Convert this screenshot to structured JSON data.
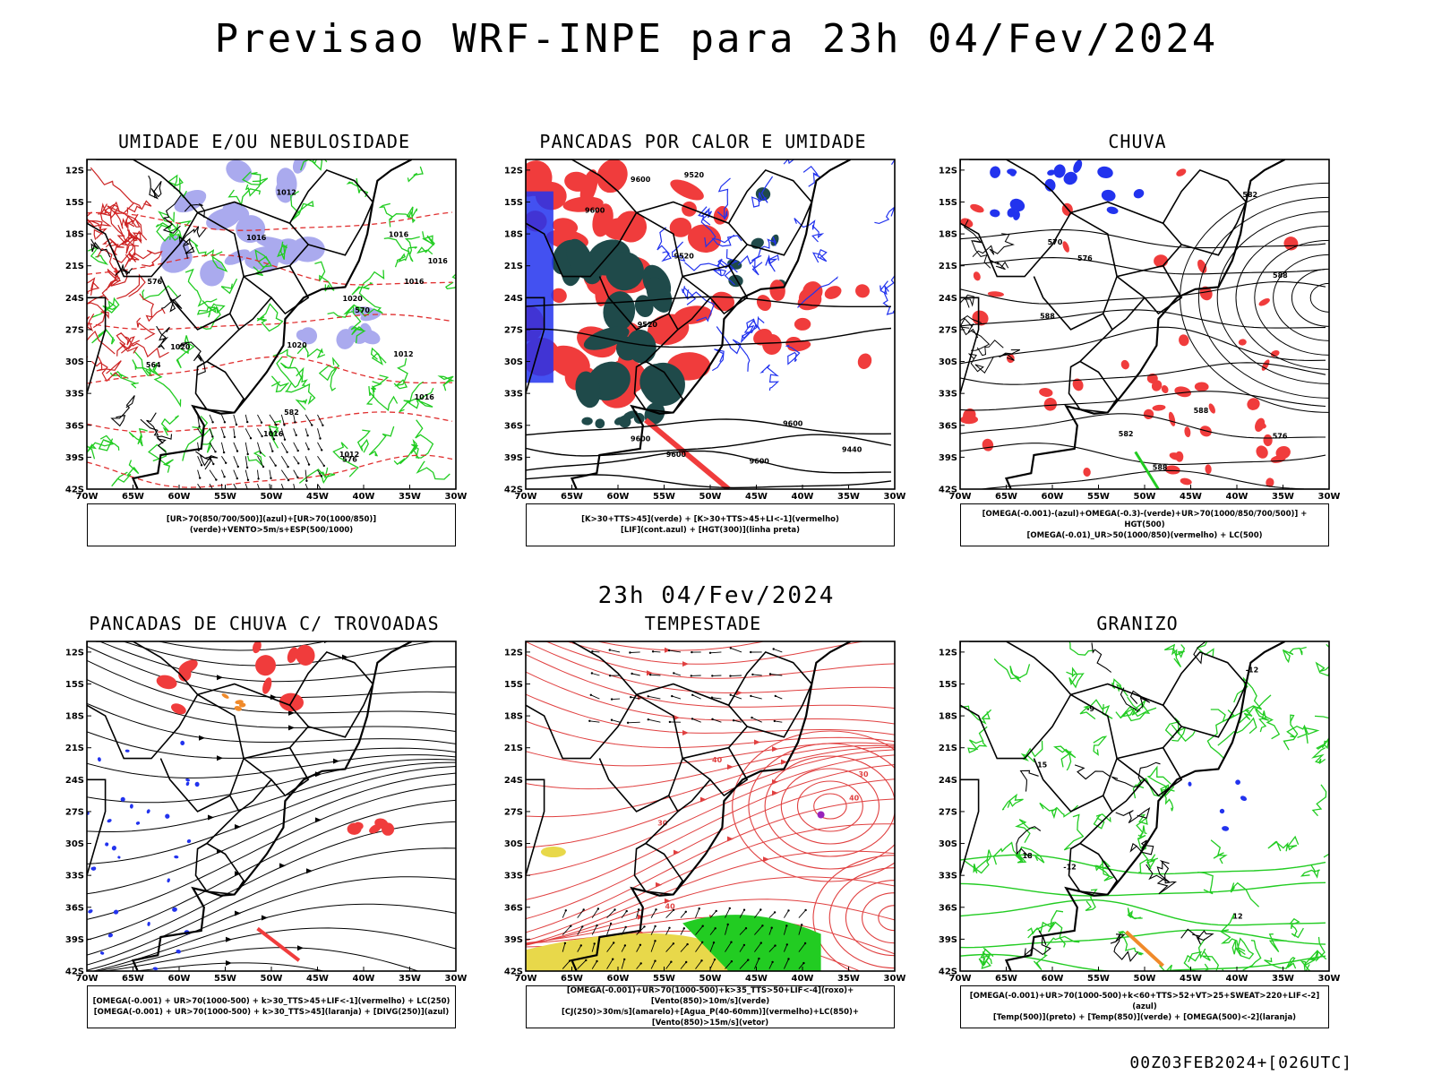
{
  "page": {
    "title": "Previsao WRF-INPE  para 23h 04/Fev/2024",
    "mid_title": "23h 04/Fev/2024",
    "footer": "00Z03FEB2024+[026UTC]"
  },
  "axes": {
    "lat_ticks": [
      "12S",
      "15S",
      "18S",
      "21S",
      "24S",
      "27S",
      "30S",
      "33S",
      "36S",
      "39S",
      "42S"
    ],
    "lon_ticks": [
      "70W",
      "65W",
      "60W",
      "55W",
      "50W",
      "45W",
      "40W",
      "35W",
      "30W"
    ]
  },
  "colors": {
    "red": "#f03c3c",
    "green": "#22cc22",
    "blue": "#2233ee",
    "lavender": "#aaaaee",
    "darkteal": "#1f4a4a",
    "yellow": "#e8d84a",
    "orange": "#f08a2a",
    "purple": "#9922bb"
  },
  "panels": [
    {
      "id": "umidade",
      "title": "UMIDADE E/OU NEBULOSIDADE",
      "legend": [
        "[UR>70(850/700/500)](azul)+[UR>70(1000/850)](verde)+VENTO>5m/s+ESP(500/1000)"
      ],
      "labels": [
        "1016",
        "1012",
        "1016",
        "1016",
        "1016",
        "1012",
        "1016",
        "1020",
        "1020",
        "1016",
        "1012",
        "1020",
        "570",
        "576",
        "582",
        "576",
        "564"
      ]
    },
    {
      "id": "pancadas_calor",
      "title": "PANCADAS POR CALOR E UMIDADE",
      "legend": [
        "[K>30+TTS>45](verde) + [K>30+TTS>45+LI<-1](vermelho)",
        "[LIF](cont.azul) + [HGT(300)](linha preta)"
      ],
      "labels": [
        "9600",
        "9600",
        "9600",
        "9600",
        "9600",
        "9600",
        "9520",
        "9440",
        "9520",
        "9520"
      ]
    },
    {
      "id": "chuva",
      "title": "CHUVA",
      "legend": [
        "[OMEGA(-0.001)-(azul)+OMEGA(-0.3)-(verde)+UR>70(1000/850/700/500)] + HGT(500)",
        "[OMEGA(-0.01)_UR>50(1000/850)(vermelho) + LC(500)"
      ],
      "labels": [
        "588",
        "588",
        "588",
        "582",
        "576",
        "570",
        "576",
        "582",
        "588"
      ]
    },
    {
      "id": "trovoadas",
      "title": "PANCADAS DE CHUVA C/ TROVOADAS",
      "legend": [
        "[OMEGA(-0.001) + UR>70(1000-500) + k>30_TTS>45+LIF<-1](vermelho) + LC(250)",
        "[OMEGA(-0.001) + UR>70(1000-500) + k>30_TTS>45](laranja) + [DIVG(250)](azul)"
      ],
      "labels": []
    },
    {
      "id": "tempestade",
      "title": "TEMPESTADE",
      "legend": [
        "[OMEGA(-0.001)+UR>70(1000-500)+k>35_TTS>50+LIF<-4](roxo)+[Vento(850)>10m/s](verde)",
        "[CJ(250)>30m/s](amarelo)+[Agua_P(40-60mm)](vermelho)+LC(850)+[Vento(850)>15m/s](vetor)"
      ],
      "labels": [
        "40",
        "40",
        "40",
        "30",
        "30"
      ]
    },
    {
      "id": "granizo",
      "title": "GRANIZO",
      "legend": [
        "[OMEGA(-0.001)+UR>70(1000-500)+k<60+TTS>52+VT>25+SWEAT>220+LIF<-2](azul)",
        "[Temp(500)](preto) + [Temp(850)](verde) + [OMEGA(500)<-2](laranja)"
      ],
      "labels": [
        "-12",
        "-12",
        "-9",
        "12",
        "15",
        "18"
      ]
    }
  ]
}
